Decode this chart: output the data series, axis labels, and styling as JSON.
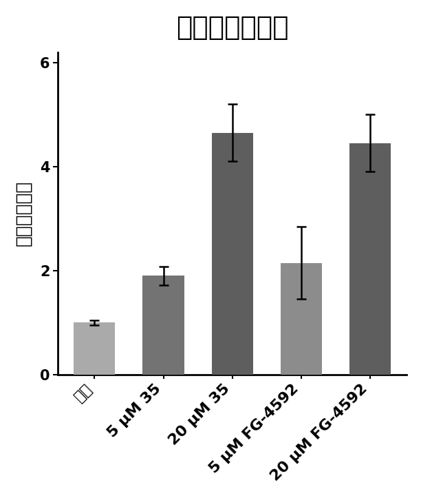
{
  "title": "促红细胞生成素",
  "ylabel": "相对提升倍数",
  "categories": [
    "对照",
    "5 μM 35",
    "20 μM 35",
    "5 μM FG-4592",
    "20 μM FG-4592"
  ],
  "values": [
    1.0,
    1.9,
    4.65,
    2.15,
    4.45
  ],
  "errors": [
    0.05,
    0.18,
    0.55,
    0.7,
    0.55
  ],
  "bar_colors": [
    "#aaaaaa",
    "#737373",
    "#5e5e5e",
    "#8c8c8c",
    "#5e5e5e"
  ],
  "ylim": [
    0,
    6.2
  ],
  "yticks": [
    0,
    2,
    4,
    6
  ],
  "bar_width": 0.6,
  "background_color": "#ffffff",
  "title_fontsize": 28,
  "ylabel_fontsize": 19,
  "tick_fontsize": 15,
  "xtick_fontsize": 16,
  "error_cap_size": 5,
  "error_linewidth": 1.8
}
